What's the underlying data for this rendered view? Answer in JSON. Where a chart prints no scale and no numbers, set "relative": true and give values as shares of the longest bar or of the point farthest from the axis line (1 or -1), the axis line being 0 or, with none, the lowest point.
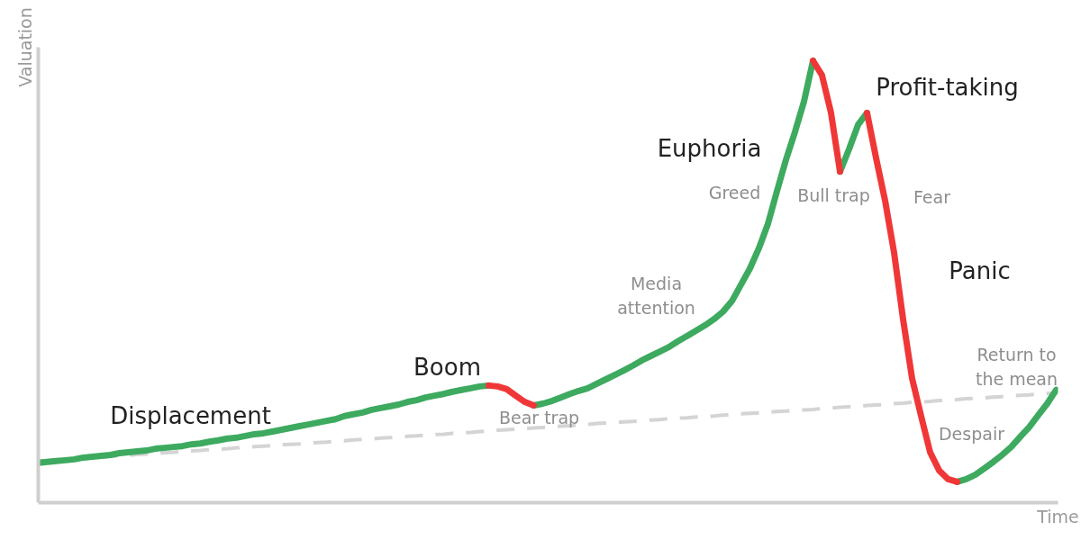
{
  "chart_data": {
    "type": "line",
    "relative": true,
    "xlabel": "Time",
    "ylabel": "Valuation",
    "categories": [
      null,
      null,
      null,
      null,
      null,
      null,
      null,
      null,
      null,
      null,
      null,
      null,
      null,
      null,
      null,
      null,
      null,
      null,
      null,
      null,
      null,
      null,
      null,
      null,
      null,
      null,
      null,
      null,
      null,
      null,
      null,
      null,
      null,
      null,
      null,
      null,
      null,
      null,
      null,
      null,
      null,
      null,
      null,
      null,
      null,
      null,
      null,
      null,
      null,
      null,
      null,
      null,
      null,
      null,
      null,
      null,
      null,
      null,
      null,
      null,
      null,
      null,
      null,
      null,
      null,
      null,
      null,
      null,
      null,
      null,
      null,
      null,
      null,
      null,
      null,
      null,
      null,
      null,
      null,
      null,
      null,
      null,
      null,
      null,
      null,
      null,
      null,
      null,
      null,
      null,
      null,
      null,
      null,
      null,
      null,
      null,
      null,
      null,
      null,
      null,
      null,
      null,
      null,
      null,
      null,
      null,
      null,
      null,
      null,
      null,
      null,
      null,
      null,
      null
    ],
    "series": [
      {
        "color": "#d4d4d4",
        "line_style": "dashed",
        "values": [
          0.094,
          0.095,
          0.096,
          0.098,
          0.099,
          0.101,
          0.102,
          0.103,
          0.105,
          0.106,
          0.107,
          0.109,
          0.11,
          0.111,
          0.113,
          0.114,
          0.116,
          0.117,
          0.118,
          0.12,
          0.121,
          0.122,
          0.124,
          0.125,
          0.127,
          0.128,
          0.129,
          0.131,
          0.132,
          0.133,
          0.135,
          0.136,
          0.137,
          0.139,
          0.14,
          0.142,
          0.143,
          0.144,
          0.146,
          0.147,
          0.148,
          0.15,
          0.151,
          0.153,
          0.154,
          0.155,
          0.157,
          0.158,
          0.159,
          0.161,
          0.162,
          0.164,
          0.165,
          0.166,
          0.168,
          0.169,
          0.17,
          0.172,
          0.173,
          0.174,
          0.176,
          0.177,
          0.179,
          0.18,
          0.181,
          0.183,
          0.184,
          0.185,
          0.187,
          0.188,
          0.19,
          0.191,
          0.192,
          0.194,
          0.195,
          0.196,
          0.198,
          0.199,
          0.201,
          0.202,
          0.203,
          0.205,
          0.206,
          0.207,
          0.209,
          0.21,
          0.211,
          0.213,
          0.214,
          0.216,
          0.217,
          0.218,
          0.22,
          0.221,
          0.222,
          0.224,
          0.225,
          0.227,
          0.228,
          0.229,
          0.231,
          0.232,
          0.233,
          0.235,
          0.236,
          0.237,
          0.239,
          0.24,
          0.242,
          0.243,
          0.244,
          0.246,
          0.247,
          0.248
        ]
      },
      {
        "color": "#3daa5f",
        "line_style": "solid",
        "values": [
          0.09,
          0.092,
          0.094,
          0.096,
          0.098,
          0.102,
          0.104,
          0.106,
          0.108,
          0.112,
          0.114,
          0.116,
          0.118,
          0.122,
          0.124,
          0.126,
          0.128,
          0.132,
          0.134,
          0.138,
          0.141,
          0.145,
          0.147,
          0.151,
          0.155,
          0.157,
          0.161,
          0.165,
          0.169,
          0.173,
          0.177,
          0.181,
          0.185,
          0.189,
          0.196,
          0.2,
          0.204,
          0.21,
          0.214,
          0.218,
          0.222,
          0.228,
          0.232,
          0.238,
          0.242,
          0.246,
          0.251,
          0.255,
          0.259,
          0.263,
          0.265,
          null,
          null,
          null,
          null,
          0.22,
          0.224,
          0.23,
          0.238,
          0.246,
          0.253,
          0.259,
          0.269,
          0.279,
          0.289,
          0.299,
          0.31,
          0.322,
          0.332,
          0.342,
          0.352,
          0.365,
          0.377,
          0.389,
          0.401,
          0.415,
          0.432,
          0.456,
          0.493,
          0.53,
          0.576,
          0.631,
          0.705,
          0.776,
          0.839,
          0.908,
          1.0,
          null,
          null,
          0.749,
          0.8,
          0.855,
          0.882,
          null,
          null,
          null,
          null,
          null,
          null,
          null,
          null,
          null,
          0.047,
          0.053,
          0.063,
          0.077,
          0.092,
          0.108,
          0.126,
          0.149,
          0.171,
          0.198,
          0.224,
          0.255
        ]
      },
      {
        "color": "#f03737",
        "line_style": "solid",
        "values": [
          null,
          null,
          null,
          null,
          null,
          null,
          null,
          null,
          null,
          null,
          null,
          null,
          null,
          null,
          null,
          null,
          null,
          null,
          null,
          null,
          null,
          null,
          null,
          null,
          null,
          null,
          null,
          null,
          null,
          null,
          null,
          null,
          null,
          null,
          null,
          null,
          null,
          null,
          null,
          null,
          null,
          null,
          null,
          null,
          null,
          null,
          null,
          null,
          null,
          null,
          0.265,
          0.263,
          0.257,
          0.242,
          0.228,
          0.22,
          null,
          null,
          null,
          null,
          null,
          null,
          null,
          null,
          null,
          null,
          null,
          null,
          null,
          null,
          null,
          null,
          null,
          null,
          null,
          null,
          null,
          null,
          null,
          null,
          null,
          null,
          null,
          null,
          null,
          null,
          1.0,
          0.967,
          0.882,
          0.749,
          null,
          null,
          0.882,
          0.78,
          0.684,
          0.566,
          0.415,
          0.281,
          0.196,
          0.114,
          0.073,
          0.053,
          0.047,
          null,
          null,
          null,
          null,
          null,
          null,
          null,
          null,
          null,
          null,
          null
        ]
      }
    ],
    "annotations": [
      "Displacement",
      "Boom",
      "Bear trap",
      "Media attention",
      "Euphoria",
      "Greed",
      "Bull trap",
      "Profit-taking",
      "Fear",
      "Panic",
      "Despair",
      "Return to the mean"
    ]
  }
}
